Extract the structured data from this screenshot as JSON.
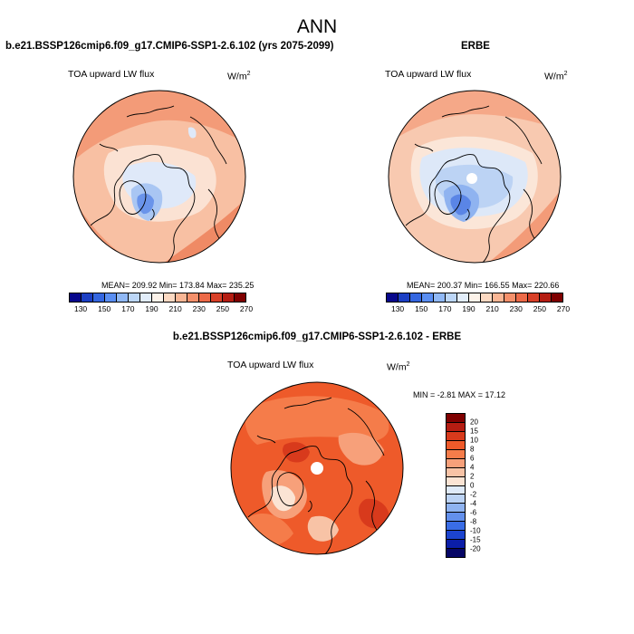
{
  "main_title": "ANN",
  "panels": {
    "model": {
      "title": "b.e21.BSSP126cmip6.f09_g17.CMIP6-SSP1-2.6.102 (yrs 2075-2099)",
      "variable": "TOA upward LW flux",
      "unit_base": "W/m",
      "unit_exp": "2",
      "stats": "MEAN= 209.92  Min= 173.84  Max= 235.25"
    },
    "obs": {
      "title": "ERBE",
      "variable": "TOA upward LW flux",
      "unit_base": "W/m",
      "unit_exp": "2",
      "stats": "MEAN= 200.37  Min= 166.55  Max= 220.66"
    },
    "diff": {
      "title": "b.e21.BSSP126cmip6.f09_g17.CMIP6-SSP1-2.6.102 - ERBE",
      "variable": "TOA upward LW flux",
      "unit_base": "W/m",
      "unit_exp": "2",
      "stats": "MIN =  -2.81 MAX =  17.12"
    }
  },
  "colorbar_abs": {
    "colors": [
      "#08088c",
      "#1c3fc4",
      "#3466e0",
      "#5a8ef2",
      "#90b8f5",
      "#bcd6f7",
      "#e2edfa",
      "#fdf3ea",
      "#fcd9c2",
      "#f9b695",
      "#f5906b",
      "#ec6a48",
      "#d84028",
      "#b51d12",
      "#7f0000"
    ],
    "tick_labels": [
      "130",
      "150",
      "170",
      "190",
      "210",
      "230",
      "250",
      "270"
    ]
  },
  "colorbar_diff": {
    "colors": [
      "#7f0000",
      "#b51d12",
      "#d83a1c",
      "#ee5a2a",
      "#f57c4a",
      "#f7a07a",
      "#f8c3a6",
      "#fbe4d4",
      "#dfeaf8",
      "#bcd3f4",
      "#8fb3f0",
      "#6390ec",
      "#3a6de6",
      "#1c44cf",
      "#0b1ea8",
      "#050565"
    ],
    "tick_labels": [
      "20",
      "15",
      "10",
      "8",
      "6",
      "4",
      "2",
      "0",
      "-2",
      "-4",
      "-6",
      "-8",
      "-10",
      "-15",
      "-20"
    ]
  }
}
